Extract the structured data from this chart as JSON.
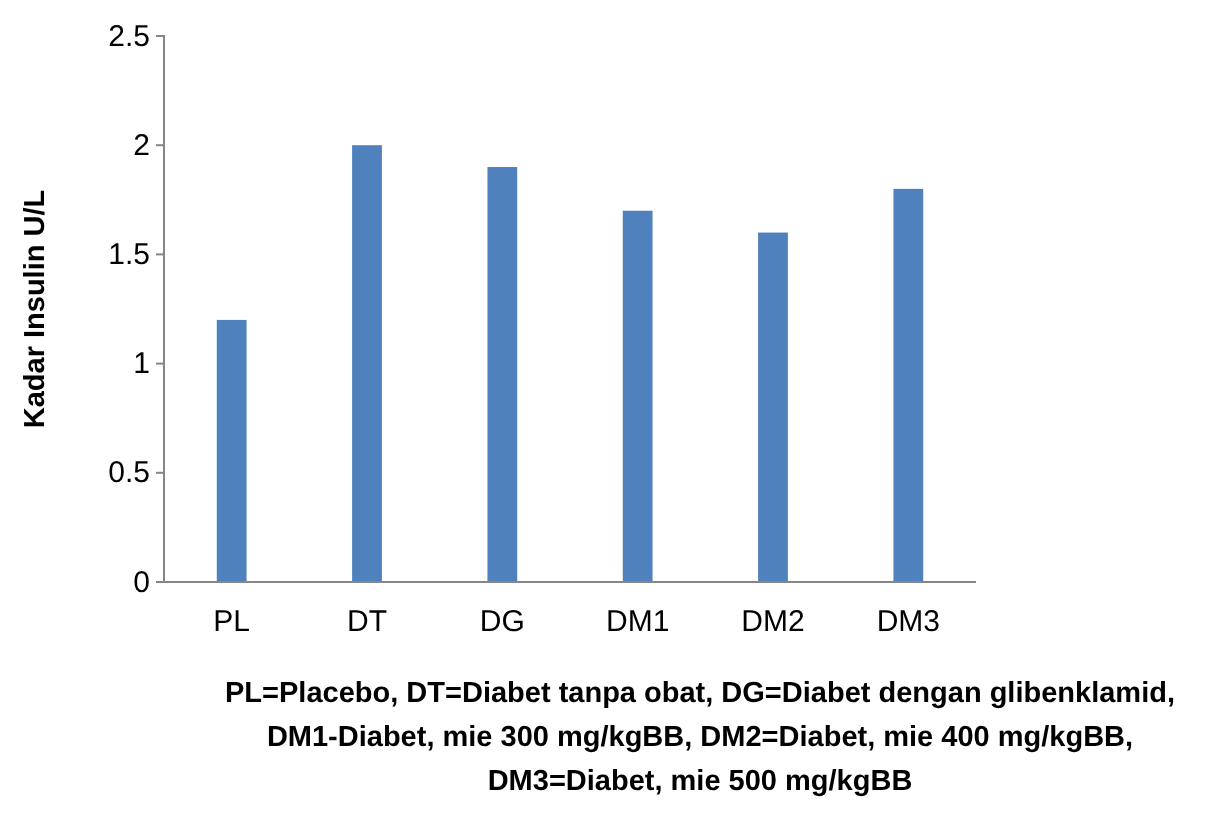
{
  "chart_data": {
    "type": "bar",
    "ylabel": "Kadar Insulin U/L",
    "categories": [
      "PL",
      "DT",
      "DG",
      "DM1",
      "DM2",
      "DM3"
    ],
    "values": [
      1.2,
      2.0,
      1.9,
      1.7,
      1.6,
      1.8
    ],
    "color": "#4f81bd",
    "ylim": [
      0,
      2.5
    ],
    "yticks": [
      0,
      {
        "value": 0.5,
        "label": "0.5"
      },
      1,
      {
        "value": 1.5,
        "label": "1.5"
      },
      2,
      {
        "value": 2.5,
        "label": "2.5"
      }
    ],
    "grid": false,
    "annotations": [
      "PL=Placebo, DT=Diabet tanpa obat, DG=Diabet dengan glibenklamid, DM1-Diabet, mie 300 mg/kgBB, DM2=Diabet, mie 400 mg/kgBB, DM3=Diabet, mie 500 mg/kgBB"
    ]
  }
}
